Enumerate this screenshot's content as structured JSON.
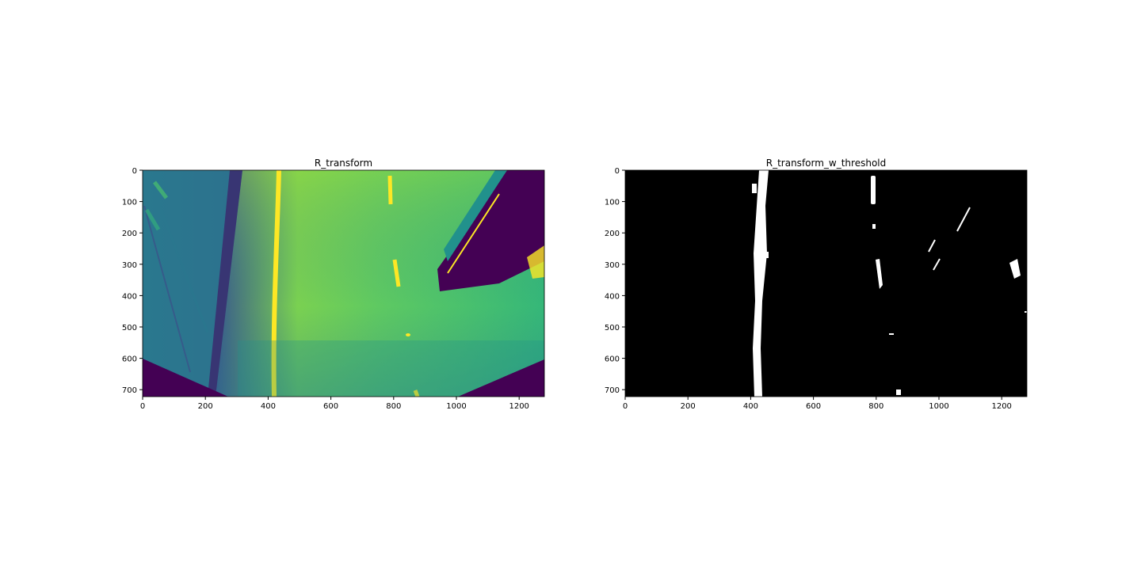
{
  "figure": {
    "panels": [
      {
        "title": "R_transform",
        "colormap": "viridis",
        "xticks": [
          "0",
          "200",
          "400",
          "600",
          "800",
          "1000",
          "1200"
        ],
        "yticks": [
          "0",
          "100",
          "200",
          "300",
          "400",
          "500",
          "600",
          "700"
        ]
      },
      {
        "title": "R_transform_w_threshold",
        "colormap": "binary",
        "xticks": [
          "0",
          "200",
          "400",
          "600",
          "800",
          "1000",
          "1200"
        ],
        "yticks": [
          "0",
          "100",
          "200",
          "300",
          "400",
          "500",
          "600",
          "700"
        ]
      }
    ]
  },
  "colors": {
    "viridis_dark": "#440154",
    "viridis_blue": "#31688e",
    "viridis_teal": "#21918c",
    "viridis_green": "#5ec962",
    "viridis_yellow": "#fde725",
    "binary_background": "#000000",
    "binary_foreground": "#ffffff"
  }
}
